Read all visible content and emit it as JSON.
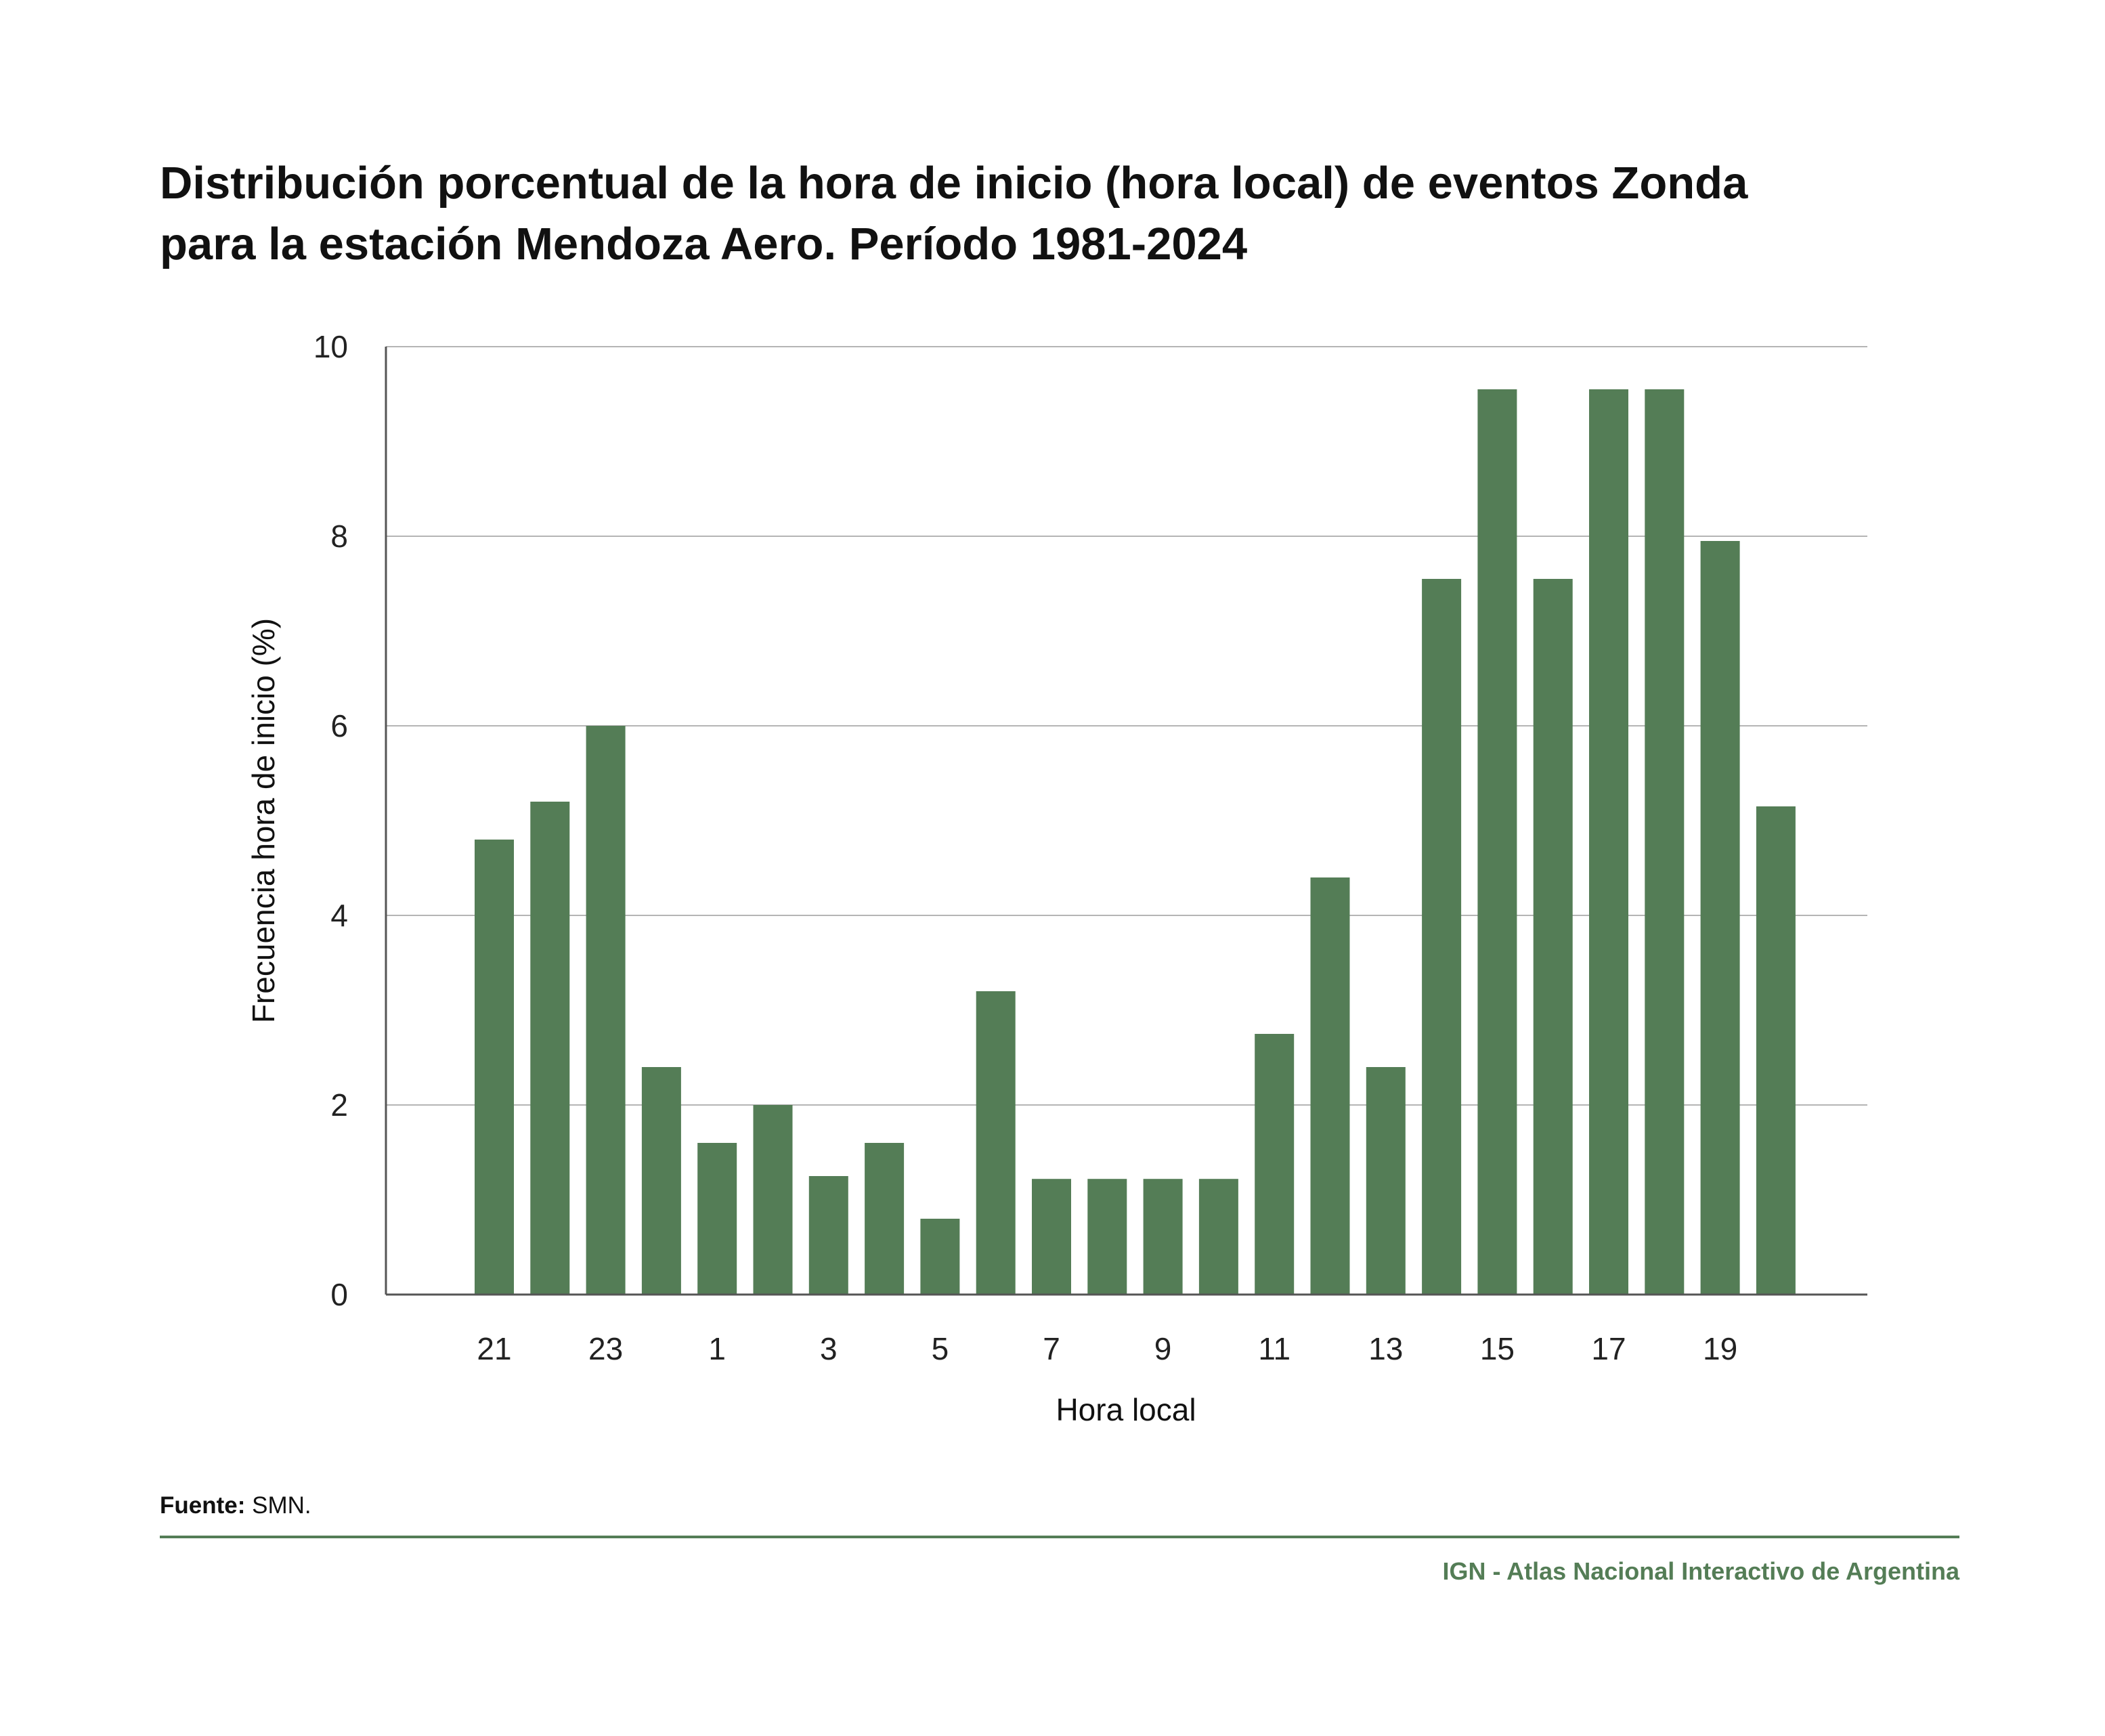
{
  "title_line1": "Distribución porcentual de la hora de inicio (hora local) de eventos Zonda",
  "title_line2": "para la estación Mendoza Aero. Período 1981-2024",
  "source_label": "Fuente:",
  "source_value": "SMN.",
  "credit": "IGN - Atlas Nacional Interactivo de Argentina",
  "colors": {
    "bar": "#547d56",
    "grid": "#b5b5b5",
    "axis": "#555555",
    "accent": "#547d56"
  },
  "chart_data": {
    "type": "bar",
    "title": "Distribución porcentual de la hora de inicio (hora local) de eventos Zonda para la estación Mendoza Aero. Período 1981-2024",
    "xlabel": "Hora local",
    "ylabel": "Frecuencia hora de inicio (%)",
    "ylim": [
      0,
      10
    ],
    "yticks": [
      0,
      2,
      4,
      6,
      8,
      10
    ],
    "grid": "horizontal",
    "categories": [
      "21",
      "22",
      "23",
      "0",
      "1",
      "2",
      "3",
      "4",
      "5",
      "6",
      "7",
      "8",
      "9",
      "10",
      "11",
      "12",
      "13",
      "14",
      "15",
      "16",
      "17",
      "18",
      "19",
      "20"
    ],
    "tick_labels": [
      "21",
      "",
      "23",
      "",
      "1",
      "",
      "3",
      "",
      "5",
      "",
      "7",
      "",
      "9",
      "",
      "11",
      "",
      "13",
      "",
      "15",
      "",
      "17",
      "",
      "19",
      ""
    ],
    "values": [
      4.8,
      5.2,
      6.0,
      2.4,
      1.6,
      2.0,
      1.25,
      1.6,
      0.8,
      3.2,
      1.22,
      1.22,
      1.22,
      1.22,
      2.75,
      4.4,
      2.4,
      7.55,
      9.55,
      7.55,
      9.55,
      9.55,
      7.95,
      5.15
    ]
  }
}
